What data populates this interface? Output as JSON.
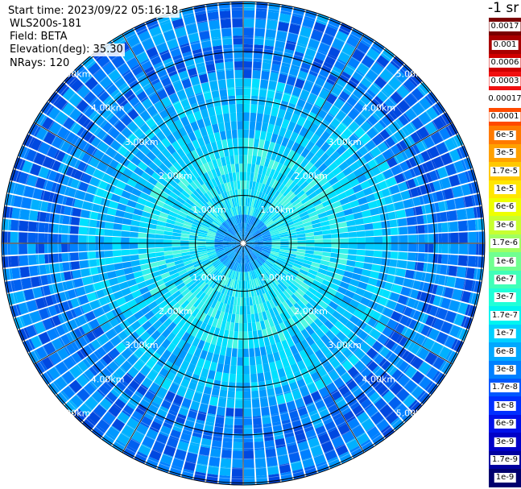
{
  "info": {
    "start_time": "Start time: 2023/09/22 05:16:18",
    "instrument": "WLS200s-181",
    "field": "Field: BETA",
    "elevation": "Elevation(deg): 35.30",
    "nrays": "NRays: 120"
  },
  "colorbar": {
    "unit": "-1 sr",
    "entries": [
      {
        "label": "0.0017",
        "color": "#7a0000"
      },
      {
        "label": "0.001",
        "color": "#a80000"
      },
      {
        "label": "0.0006",
        "color": "#d00000"
      },
      {
        "label": "0.0003",
        "color": "#f01010"
      },
      {
        "label": "0.00017",
        "color": "#ffffff"
      },
      {
        "label": "0.0001",
        "color": "#ff4a00"
      },
      {
        "label": "6e-5",
        "color": "#ff7a00"
      },
      {
        "label": "3e-5",
        "color": "#ffa000"
      },
      {
        "label": "1.7e-5",
        "color": "#ffc800"
      },
      {
        "label": "1e-5",
        "color": "#ffe600"
      },
      {
        "label": "6e-6",
        "color": "#eeff00"
      },
      {
        "label": "3e-6",
        "color": "#c8ff30"
      },
      {
        "label": "1.7e-6",
        "color": "#a0ff60"
      },
      {
        "label": "1e-6",
        "color": "#70ff90"
      },
      {
        "label": "6e-7",
        "color": "#40ffb8"
      },
      {
        "label": "3e-7",
        "color": "#20ffd8"
      },
      {
        "label": "1.7e-7",
        "color": "#00f4f0"
      },
      {
        "label": "1e-7",
        "color": "#00d0ff"
      },
      {
        "label": "6e-8",
        "color": "#00a8ff"
      },
      {
        "label": "3e-8",
        "color": "#0080ff"
      },
      {
        "label": "1.7e-8",
        "color": "#0058ff"
      },
      {
        "label": "1e-8",
        "color": "#0030ff"
      },
      {
        "label": "6e-9",
        "color": "#0010e8"
      },
      {
        "label": "3e-9",
        "color": "#0000c8"
      },
      {
        "label": "1.7e-9",
        "color": "#0000a0"
      },
      {
        "label": "1e-9",
        "color": "#00006e"
      }
    ]
  },
  "rings": [
    {
      "label": "1.00km"
    },
    {
      "label": "2.00km"
    },
    {
      "label": "3.00km"
    },
    {
      "label": "4.00km"
    },
    {
      "label": "5.00km"
    }
  ]
}
